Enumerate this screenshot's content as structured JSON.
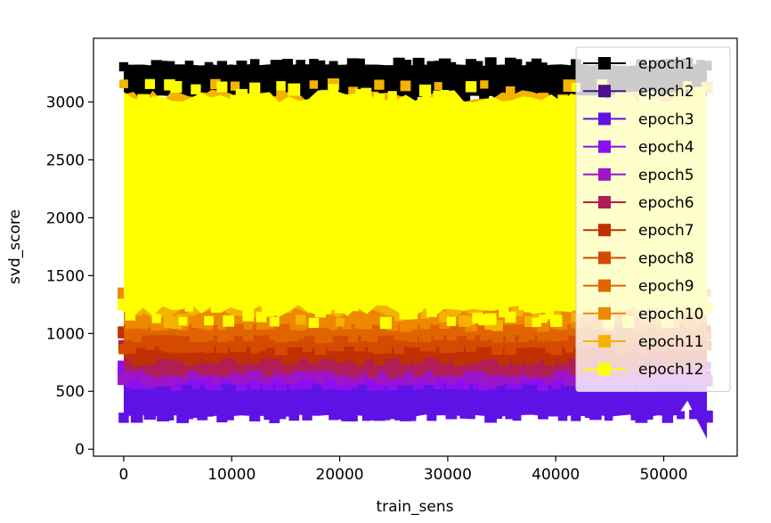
{
  "chart_data": {
    "type": "scatter",
    "title": "",
    "xlabel": "train_sens",
    "ylabel": "svd_score",
    "xlim": [
      -2800,
      56800
    ],
    "ylim": [
      -60,
      3550
    ],
    "x_ticks": [
      0,
      10000,
      20000,
      30000,
      40000,
      50000
    ],
    "x_tick_labels": [
      "0",
      "10000",
      "20000",
      "30000",
      "40000",
      "50000"
    ],
    "y_ticks": [
      0,
      500,
      1000,
      1500,
      2000,
      2500,
      3000
    ],
    "y_tick_labels": [
      "0",
      "500",
      "1000",
      "1500",
      "2000",
      "2500",
      "3000"
    ],
    "grid": false,
    "legend_position": "top-right",
    "marker": "square",
    "x_range": [
      0,
      54000
    ],
    "series": [
      {
        "name": "epoch1",
        "color": "#000000",
        "y_low": 3050,
        "y_high": 3320
      },
      {
        "name": "epoch2",
        "color": "#4b0f8f",
        "y_low": 480,
        "y_high": 640
      },
      {
        "name": "epoch3",
        "color": "#5e12e6",
        "y_low": 290,
        "y_high": 620
      },
      {
        "name": "epoch4",
        "color": "#8a0ff2",
        "y_low": 560,
        "y_high": 720
      },
      {
        "name": "epoch5",
        "color": "#9c15c8",
        "y_low": 600,
        "y_high": 780
      },
      {
        "name": "epoch6",
        "color": "#b01e55",
        "y_low": 680,
        "y_high": 900
      },
      {
        "name": "epoch7",
        "color": "#c03000",
        "y_low": 780,
        "y_high": 1020
      },
      {
        "name": "epoch8",
        "color": "#d44a00",
        "y_low": 880,
        "y_high": 1140
      },
      {
        "name": "epoch9",
        "color": "#e06400",
        "y_low": 980,
        "y_high": 1250
      },
      {
        "name": "epoch10",
        "color": "#ee8800",
        "y_low": 1080,
        "y_high": 1340
      },
      {
        "name": "epoch11",
        "color": "#f4b300",
        "y_low": 1180,
        "y_high": 3050
      },
      {
        "name": "epoch12",
        "color": "#ffff00",
        "y_low": 1200,
        "y_high": 3050
      }
    ]
  }
}
